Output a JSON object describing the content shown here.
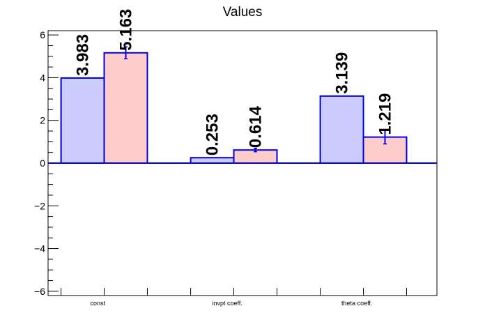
{
  "chart_data": {
    "type": "bar",
    "title": "Values",
    "xlabel": "",
    "ylabel": "",
    "categories": [
      "const",
      "invpt coeff.",
      "theta coeff."
    ],
    "ylim": [
      -6.2,
      6.2
    ],
    "yticks": [
      -6,
      -4,
      -2,
      0,
      2,
      4,
      6
    ],
    "grid": false,
    "legend": "none",
    "series": [
      {
        "values": [
          3.983,
          0.253,
          3.139
        ],
        "labels": [
          "3.983",
          "0.253",
          "3.139"
        ],
        "errors": [
          0,
          0,
          0
        ],
        "fill": "#ccccff",
        "edge": "#0000dd"
      },
      {
        "values": [
          5.163,
          0.614,
          1.219
        ],
        "labels": [
          "5.163",
          "0.614",
          "1.219"
        ],
        "errors": [
          0.28,
          0.08,
          0.32
        ],
        "fill": "#ffcccc",
        "edge": "#0000dd"
      }
    ]
  }
}
